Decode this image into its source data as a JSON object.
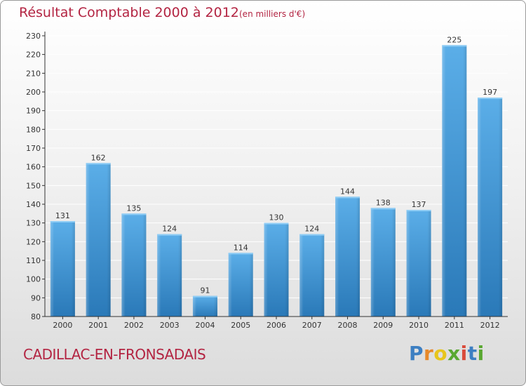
{
  "header": {
    "title": "Résultat Comptable 2000 à 2012",
    "subtitle": "(en milliers d'€)"
  },
  "footer": {
    "place": "CADILLAC-EN-FRONSADAIS",
    "logo_letters": [
      "P",
      "r",
      "o",
      "x",
      "i",
      "t",
      "i"
    ],
    "logo_colors": [
      "#3d7fc2",
      "#e7892a",
      "#e7c51c",
      "#5aa832",
      "#d94b3b",
      "#3d7fc2",
      "#5aa832"
    ]
  },
  "colors": {
    "bar_top": "#5baee8",
    "bar_bottom": "#2a79b8",
    "title": "#b32442",
    "axis": "#333333",
    "grid": "#ffffff"
  },
  "chart_data": {
    "type": "bar",
    "title": "Résultat Comptable 2000 à 2012",
    "ylabel": "",
    "xlabel": "",
    "categories": [
      "2000",
      "2001",
      "2002",
      "2003",
      "2004",
      "2005",
      "2006",
      "2007",
      "2008",
      "2009",
      "2010",
      "2011",
      "2012"
    ],
    "values": [
      131,
      162,
      135,
      124,
      91,
      114,
      130,
      124,
      144,
      138,
      137,
      225,
      197
    ],
    "ylim": [
      80,
      230
    ],
    "yticks": [
      80,
      90,
      100,
      110,
      120,
      130,
      140,
      150,
      160,
      170,
      180,
      190,
      200,
      210,
      220,
      230
    ],
    "grid": true
  }
}
